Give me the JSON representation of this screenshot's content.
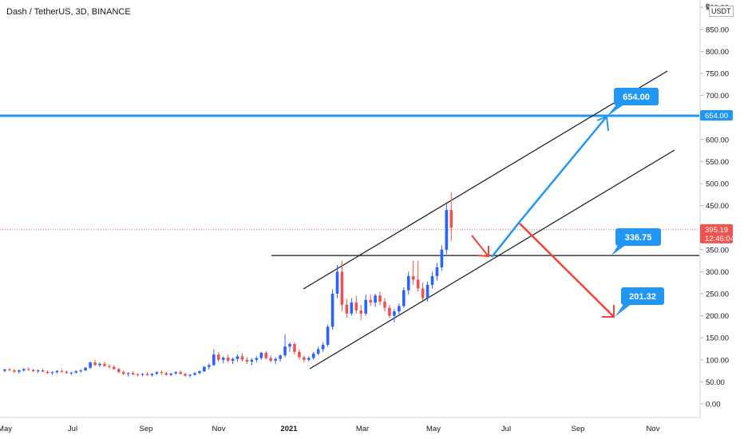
{
  "header": {
    "title": "Dash / TetherUS, 3D, BINANCE",
    "currency": "USDT"
  },
  "colors": {
    "up": "#26a69a",
    "down": "#ef5350",
    "up_body": "#2962ff",
    "blue_line": "#2196f3",
    "red_arrow": "#f44336",
    "trendline": "#131722",
    "current_price": "#ef5350"
  },
  "chart_data": {
    "type": "candlestick",
    "xaxis": {
      "ticks": [
        "May",
        "Jul",
        "Sep",
        "Nov",
        "2021",
        "Mar",
        "May",
        "Jul",
        "Sep",
        "Nov"
      ]
    },
    "yaxis": {
      "ylim": [
        0,
        900
      ],
      "ticks": [
        "0.00",
        "50.00",
        "100.00",
        "150.00",
        "200.00",
        "250.00",
        "300.00",
        "350.00",
        "400.00",
        "450.00",
        "500.00",
        "550.00",
        "600.00",
        "650.00",
        "700.00",
        "750.00",
        "800.00",
        "850.00",
        "900.00"
      ]
    },
    "horizontal_lines": [
      {
        "value": 654.0,
        "label": "654.00",
        "color": "#2196f3"
      },
      {
        "value": 336.75,
        "color": "#131722"
      }
    ],
    "current_price": {
      "value": 395.19,
      "label": "395.19",
      "countdown": "12:46:04"
    },
    "annotations": [
      {
        "label": "654.00",
        "value": 654.0
      },
      {
        "label": "336.75",
        "value": 336.75
      },
      {
        "label": "201.32",
        "value": 201.32
      }
    ],
    "candles": [
      [
        75,
        80,
        72,
        78
      ],
      [
        78,
        82,
        74,
        76
      ],
      [
        76,
        79,
        70,
        73
      ],
      [
        73,
        78,
        69,
        76
      ],
      [
        76,
        81,
        73,
        79
      ],
      [
        79,
        83,
        75,
        77
      ],
      [
        77,
        80,
        72,
        74
      ],
      [
        74,
        78,
        70,
        76
      ],
      [
        76,
        80,
        72,
        73
      ],
      [
        73,
        76,
        68,
        70
      ],
      [
        70,
        74,
        66,
        72
      ],
      [
        72,
        76,
        69,
        75
      ],
      [
        75,
        79,
        71,
        73
      ],
      [
        73,
        76,
        68,
        70
      ],
      [
        70,
        73,
        65,
        71
      ],
      [
        71,
        76,
        69,
        74
      ],
      [
        74,
        79,
        71,
        76
      ],
      [
        76,
        84,
        74,
        82
      ],
      [
        82,
        96,
        80,
        94
      ],
      [
        94,
        100,
        86,
        88
      ],
      [
        88,
        94,
        83,
        91
      ],
      [
        91,
        96,
        84,
        86
      ],
      [
        86,
        90,
        80,
        84
      ],
      [
        84,
        88,
        77,
        79
      ],
      [
        79,
        82,
        70,
        72
      ],
      [
        72,
        76,
        65,
        68
      ],
      [
        68,
        72,
        62,
        70
      ],
      [
        70,
        74,
        65,
        67
      ],
      [
        67,
        70,
        62,
        66
      ],
      [
        66,
        70,
        63,
        68
      ],
      [
        68,
        72,
        64,
        65
      ],
      [
        65,
        70,
        62,
        68
      ],
      [
        68,
        74,
        66,
        72
      ],
      [
        72,
        76,
        66,
        70
      ],
      [
        70,
        73,
        64,
        66
      ],
      [
        66,
        70,
        63,
        69
      ],
      [
        69,
        74,
        66,
        72
      ],
      [
        72,
        76,
        67,
        68
      ],
      [
        68,
        71,
        62,
        64
      ],
      [
        64,
        68,
        60,
        66
      ],
      [
        66,
        72,
        64,
        70
      ],
      [
        70,
        76,
        67,
        74
      ],
      [
        74,
        86,
        72,
        84
      ],
      [
        84,
        92,
        78,
        88
      ],
      [
        88,
        124,
        86,
        112
      ],
      [
        112,
        118,
        95,
        100
      ],
      [
        100,
        108,
        92,
        105
      ],
      [
        105,
        112,
        94,
        98
      ],
      [
        98,
        106,
        90,
        102
      ],
      [
        102,
        112,
        96,
        108
      ],
      [
        108,
        115,
        96,
        100
      ],
      [
        100,
        106,
        90,
        96
      ],
      [
        96,
        104,
        88,
        100
      ],
      [
        100,
        108,
        94,
        104
      ],
      [
        104,
        118,
        100,
        116
      ],
      [
        116,
        120,
        100,
        104
      ],
      [
        104,
        110,
        95,
        98
      ],
      [
        98,
        106,
        90,
        102
      ],
      [
        102,
        112,
        96,
        110
      ],
      [
        110,
        158,
        106,
        130
      ],
      [
        130,
        140,
        118,
        136
      ],
      [
        136,
        140,
        112,
        118
      ],
      [
        118,
        124,
        100,
        106
      ],
      [
        106,
        110,
        94,
        100
      ],
      [
        100,
        108,
        96,
        104
      ],
      [
        104,
        118,
        100,
        114
      ],
      [
        114,
        130,
        110,
        124
      ],
      [
        124,
        140,
        118,
        134
      ],
      [
        134,
        180,
        130,
        175
      ],
      [
        175,
        260,
        168,
        250
      ],
      [
        250,
        315,
        240,
        300
      ],
      [
        300,
        325,
        210,
        225
      ],
      [
        225,
        238,
        195,
        205
      ],
      [
        205,
        240,
        200,
        230
      ],
      [
        230,
        245,
        205,
        212
      ],
      [
        212,
        225,
        190,
        205
      ],
      [
        205,
        248,
        200,
        236
      ],
      [
        236,
        248,
        222,
        230
      ],
      [
        230,
        250,
        220,
        246
      ],
      [
        246,
        255,
        224,
        232
      ],
      [
        232,
        240,
        210,
        218
      ],
      [
        218,
        225,
        195,
        200
      ],
      [
        200,
        215,
        185,
        210
      ],
      [
        210,
        228,
        200,
        222
      ],
      [
        222,
        265,
        218,
        258
      ],
      [
        258,
        300,
        248,
        290
      ],
      [
        290,
        325,
        270,
        282
      ],
      [
        282,
        325,
        255,
        262
      ],
      [
        262,
        275,
        235,
        240
      ],
      [
        240,
        278,
        232,
        270
      ],
      [
        270,
        300,
        262,
        290
      ],
      [
        290,
        320,
        280,
        310
      ],
      [
        310,
        360,
        302,
        350
      ],
      [
        350,
        455,
        340,
        440
      ],
      [
        440,
        480,
        370,
        400
      ]
    ]
  }
}
